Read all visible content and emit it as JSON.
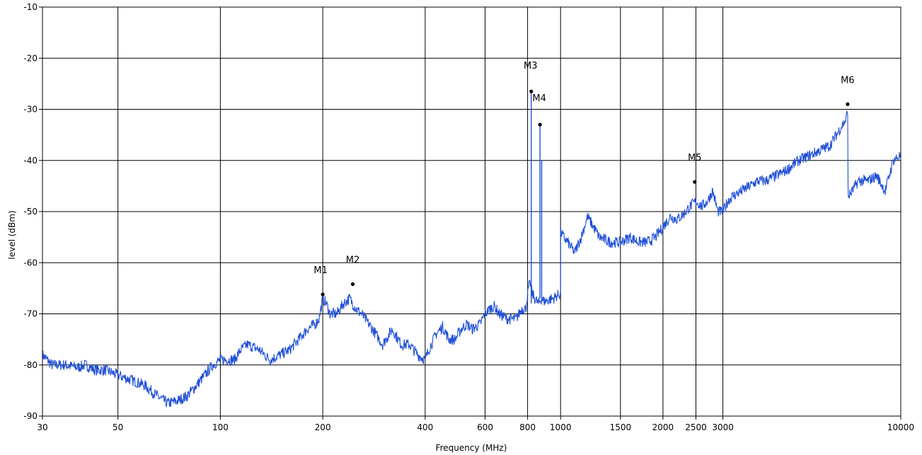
{
  "chart_data": {
    "type": "line",
    "title": "",
    "xlabel": "Frequency (MHz)",
    "ylabel": "level (dBm)",
    "x_scale": "log",
    "xlim": [
      30,
      10000
    ],
    "ylim": [
      -90,
      -10
    ],
    "grid": true,
    "x_ticks": [
      30,
      50,
      100,
      200,
      400,
      600,
      800,
      1000,
      1500,
      2000,
      2500,
      3000,
      10000
    ],
    "x_tick_labels": [
      "30",
      "50",
      "100",
      "200",
      "400",
      "600",
      "800",
      "1000",
      "1500",
      "2000",
      "2500",
      "3000",
      "10000"
    ],
    "y_ticks": [
      -10,
      -20,
      -30,
      -40,
      -50,
      -60,
      -70,
      -80,
      -90
    ],
    "y_tick_labels": [
      "-10",
      "-20",
      "-30",
      "-40",
      "-50",
      "-60",
      "-70",
      "-80",
      "-90"
    ],
    "series": [
      {
        "color": "#1f4fd6",
        "x": [
          30,
          32,
          35,
          38,
          40,
          43,
          46,
          50,
          55,
          60,
          65,
          70,
          75,
          80,
          85,
          90,
          95,
          100,
          105,
          110,
          115,
          120,
          130,
          140,
          150,
          160,
          170,
          180,
          190,
          195,
          200,
          205,
          210,
          220,
          230,
          240,
          250,
          260,
          280,
          300,
          320,
          340,
          360,
          380,
          400,
          410,
          430,
          450,
          470,
          490,
          510,
          530,
          550,
          580,
          600,
          620,
          640,
          660,
          700,
          740,
          770,
          790,
          805,
          815,
          825,
          840,
          860,
          870,
          880,
          890,
          900,
          950,
          1000,
          1000.5,
          1020,
          1050,
          1100,
          1150,
          1200,
          1250,
          1300,
          1400,
          1500,
          1600,
          1700,
          1800,
          1900,
          2000,
          2100,
          2200,
          2300,
          2400,
          2450,
          2500,
          2550,
          2600,
          2700,
          2800,
          2900,
          3000,
          3100,
          3200,
          3400,
          3600,
          3800,
          4000,
          4300,
          4600,
          5000,
          5400,
          5800,
          6200,
          6600,
          6900,
          6980,
          7000,
          7020,
          7200,
          7500,
          8000,
          8500,
          9000,
          9500,
          10000
        ],
        "y": [
          -78,
          -80,
          -80,
          -80.5,
          -80,
          -81,
          -81,
          -82,
          -83,
          -84,
          -86,
          -87.5,
          -87,
          -86,
          -84,
          -82,
          -80,
          -79,
          -79,
          -79,
          -77,
          -76,
          -77,
          -79,
          -78,
          -77,
          -75,
          -73,
          -72,
          -71,
          -67,
          -68,
          -70,
          -70,
          -68,
          -67,
          -69,
          -70,
          -73,
          -76,
          -73,
          -76,
          -76,
          -78,
          -79,
          -77,
          -74,
          -72.5,
          -75,
          -75,
          -73,
          -72,
          -73,
          -72,
          -70,
          -69,
          -68.5,
          -70,
          -71,
          -71,
          -69,
          -69,
          -65,
          -64,
          -66,
          -67,
          -68,
          -67.5,
          -67,
          -67.5,
          -67.5,
          -67,
          -66,
          -54,
          -55,
          -56,
          -58,
          -55,
          -51,
          -53,
          -55,
          -56,
          -56,
          -55,
          -56,
          -56,
          -55,
          -53,
          -51,
          -51.5,
          -50.5,
          -49,
          -48.5,
          -48,
          -48.5,
          -49,
          -48,
          -46,
          -50,
          -50,
          -48,
          -47,
          -46,
          -45,
          -44,
          -44,
          -43,
          -42,
          -40,
          -39,
          -38,
          -37,
          -34,
          -32,
          -30,
          -46,
          -47,
          -46,
          -44,
          -44,
          -43,
          -46,
          -40,
          -39
        ]
      }
    ],
    "spikes": [
      {
        "x": 820,
        "y_peak": -26.5,
        "y_base": -68
      },
      {
        "x": 870,
        "y_peak": -33,
        "y_base": -67
      },
      {
        "x": 880,
        "y_peak": -40,
        "y_base": -67
      }
    ],
    "markers": [
      {
        "label": "M1",
        "x": 200,
        "y": -66.2
      },
      {
        "label": "M2",
        "x": 245,
        "y": -64.2
      },
      {
        "label": "M3",
        "x": 820,
        "y": -26.5
      },
      {
        "label": "M4",
        "x": 870,
        "y": -33
      },
      {
        "label": "M5",
        "x": 2480,
        "y": -44.2
      },
      {
        "label": "M6",
        "x": 6980,
        "y": -29
      }
    ]
  }
}
